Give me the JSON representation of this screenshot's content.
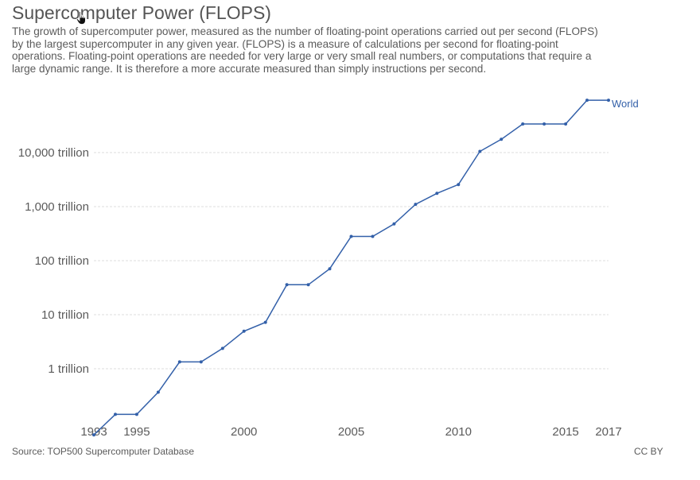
{
  "header": {
    "title": "Supercomputer Power (FLOPS)",
    "subtitle": "The growth of supercomputer power, measured as the number of floating-point operations carried out per second (FLOPS) by the largest supercomputer in any given year. (FLOPS) is a measure of calculations per second for floating-point operations. Floating-point operations are needed for very large or very small real numbers, or computations that require a large dynamic range. It is therefore a more accurate measured than simply instructions per second."
  },
  "footer": {
    "source": "Source: TOP500 Supercomputer Database",
    "license": "CC BY"
  },
  "icons": {
    "cursor": "hand-pointer-icon"
  },
  "colors": {
    "series": "#3360a9",
    "grid": "#dddddd",
    "text": "#5b5b5b"
  },
  "chart_data": {
    "type": "line",
    "scale": "log",
    "grid": true,
    "ylim": [
      0.09,
      200000
    ],
    "xlim": [
      1993,
      2017
    ],
    "y_ticks": [
      {
        "value": 1,
        "label": "1 trillion"
      },
      {
        "value": 10,
        "label": "10 trillion"
      },
      {
        "value": 100,
        "label": "100 trillion"
      },
      {
        "value": 1000,
        "label": "1,000 trillion"
      },
      {
        "value": 10000,
        "label": "10,000 trillion"
      }
    ],
    "x_ticks": [
      1993,
      1995,
      2000,
      2005,
      2010,
      2015,
      2017
    ],
    "series": [
      {
        "name": "World",
        "color": "#3360a9",
        "x": [
          1993,
          1994,
          1995,
          1996,
          1997,
          1998,
          1999,
          2000,
          2001,
          2002,
          2003,
          2004,
          2005,
          2006,
          2007,
          2008,
          2009,
          2010,
          2011,
          2012,
          2013,
          2014,
          2015,
          2016,
          2017
        ],
        "y": [
          0.0597,
          0.1434,
          0.1434,
          0.3682,
          1.338,
          1.338,
          2.379,
          4.938,
          7.226,
          35.86,
          35.86,
          70.72,
          280.6,
          280.6,
          478.2,
          1105,
          1759,
          2566,
          10510,
          17590,
          33860,
          33860,
          33860,
          93010,
          93010
        ]
      }
    ]
  }
}
